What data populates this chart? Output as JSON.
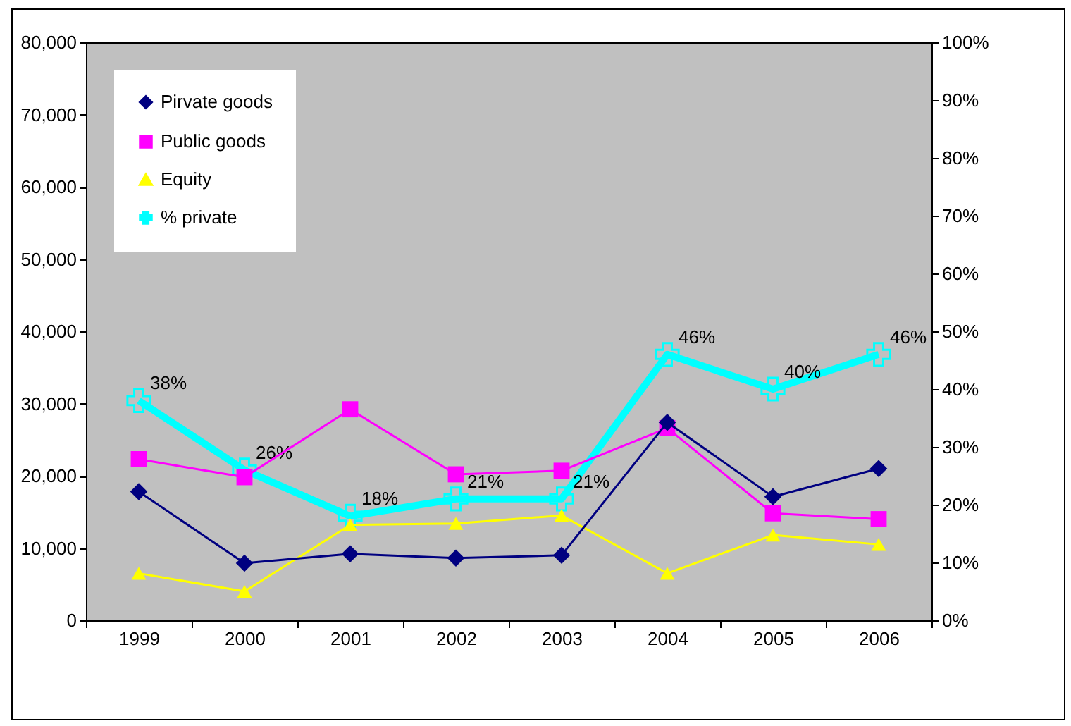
{
  "chart_data": {
    "type": "line",
    "categories": [
      "1999",
      "2000",
      "2001",
      "2002",
      "2003",
      "2004",
      "2005",
      "2006"
    ],
    "series": [
      {
        "name": "Pirvate goods",
        "color": "#000080",
        "marker": "diamond",
        "values": [
          17800,
          7900,
          9200,
          8600,
          9000,
          27400,
          17100,
          21000
        ]
      },
      {
        "name": "Public goods",
        "color": "#ff00ff",
        "marker": "square",
        "values": [
          22300,
          19800,
          29200,
          20200,
          20700,
          26600,
          14800,
          14000
        ]
      },
      {
        "name": "Equity",
        "color": "#ffff00",
        "marker": "triangle",
        "values": [
          6500,
          4000,
          13200,
          13400,
          14500,
          6500,
          11800,
          10500
        ]
      },
      {
        "name": "% private",
        "color": "#00ffff",
        "marker": "cross",
        "axis": "y2",
        "values": [
          38,
          26,
          18,
          21,
          21,
          46,
          40,
          46
        ],
        "value_labels": [
          "38%",
          "26%",
          "18%",
          "21%",
          "21%",
          "46%",
          "40%",
          "46%"
        ]
      }
    ],
    "ylim": [
      0,
      80000
    ],
    "yticks": [
      {
        "value": 0,
        "label": "0"
      },
      {
        "value": 10000,
        "label": "10,000"
      },
      {
        "value": 20000,
        "label": "20,000"
      },
      {
        "value": 30000,
        "label": "30,000"
      },
      {
        "value": 40000,
        "label": "40,000"
      },
      {
        "value": 50000,
        "label": "50,000"
      },
      {
        "value": 60000,
        "label": "60,000"
      },
      {
        "value": 70000,
        "label": "70,000"
      },
      {
        "value": 80000,
        "label": "80,000"
      }
    ],
    "y2lim": [
      0,
      100
    ],
    "y2ticks": [
      {
        "value": 0,
        "label": "0%"
      },
      {
        "value": 10,
        "label": "10%"
      },
      {
        "value": 20,
        "label": "20%"
      },
      {
        "value": 30,
        "label": "30%"
      },
      {
        "value": 40,
        "label": "40%"
      },
      {
        "value": 50,
        "label": "50%"
      },
      {
        "value": 60,
        "label": "60%"
      },
      {
        "value": 70,
        "label": "70%"
      },
      {
        "value": 80,
        "label": "80%"
      },
      {
        "value": 90,
        "label": "90%"
      },
      {
        "value": 100,
        "label": "100%"
      }
    ],
    "grid": false,
    "legend": "top left"
  }
}
